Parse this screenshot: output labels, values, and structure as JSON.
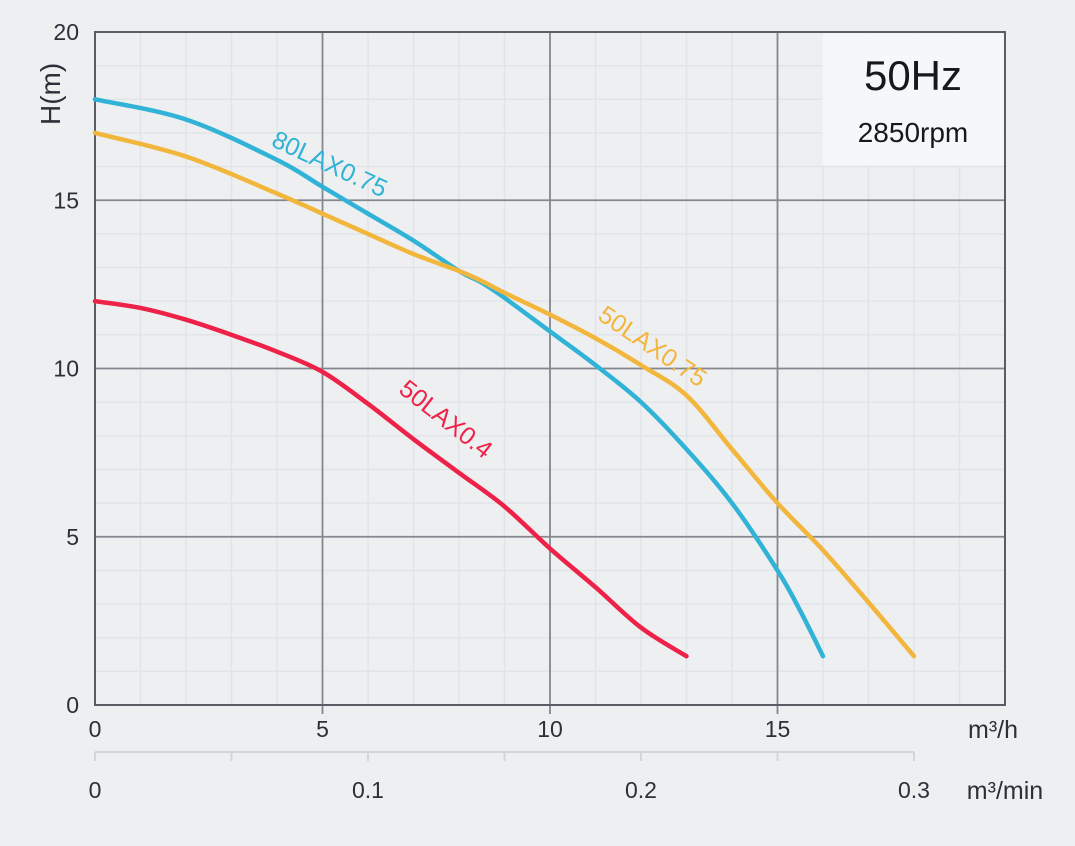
{
  "header": {
    "frequency": "50Hz",
    "rpm": "2850rpm"
  },
  "chart_data": {
    "type": "line",
    "title": "",
    "ylabel": "H(m)",
    "y_axis": {
      "label": "H(m)",
      "range": [
        0,
        20
      ],
      "ticks": [
        0,
        5,
        10,
        15,
        20
      ],
      "minor_step": 1,
      "grid": true
    },
    "x_axis_primary": {
      "unit": "m³/h",
      "range": [
        0,
        20
      ],
      "ticks": [
        0,
        5,
        10,
        15
      ],
      "minor_step": 1,
      "grid": true
    },
    "x_axis_secondary": {
      "unit": "m³/min",
      "range": [
        0,
        0.3
      ],
      "ticks": [
        0,
        0.1,
        0.2,
        0.3
      ],
      "tick_step": 0.05,
      "conversion_to_primary": 60
    },
    "legend_position": "on-curve",
    "series": [
      {
        "name": "80LAX0.75",
        "color": "#30b3d6",
        "points": [
          [
            0,
            18
          ],
          [
            2,
            17.4
          ],
          [
            4,
            16.2
          ],
          [
            5,
            15.4
          ],
          [
            6,
            14.6
          ],
          [
            7,
            13.8
          ],
          [
            8,
            12.9
          ],
          [
            8.5,
            12.55
          ],
          [
            9,
            12.1
          ],
          [
            10,
            11.1
          ],
          [
            11,
            10.1
          ],
          [
            12,
            9.0
          ],
          [
            13,
            7.6
          ],
          [
            14,
            6.0
          ],
          [
            15,
            4.0
          ],
          [
            15.5,
            2.8
          ],
          [
            16,
            1.45
          ]
        ],
        "label_at": [
          5.08,
          15.85
        ],
        "label_rotation": 25
      },
      {
        "name": "50LAX0.75",
        "color": "#f3b63c",
        "points": [
          [
            0,
            17
          ],
          [
            2,
            16.3
          ],
          [
            4,
            15.2
          ],
          [
            5,
            14.6
          ],
          [
            6,
            14.0
          ],
          [
            7,
            13.4
          ],
          [
            8,
            12.9
          ],
          [
            8.5,
            12.6
          ],
          [
            9,
            12.25
          ],
          [
            10,
            11.6
          ],
          [
            11,
            10.9
          ],
          [
            12,
            10.1
          ],
          [
            13,
            9.2
          ],
          [
            14,
            7.6
          ],
          [
            15,
            6.0
          ],
          [
            16,
            4.6
          ],
          [
            17,
            3.05
          ],
          [
            18,
            1.45
          ]
        ],
        "label_at": [
          12.15,
          10.45
        ],
        "label_rotation": 34
      },
      {
        "name": "50LAX0.4",
        "color": "#ee2248",
        "points": [
          [
            0,
            12
          ],
          [
            1,
            11.8
          ],
          [
            2,
            11.45
          ],
          [
            3,
            11.0
          ],
          [
            4,
            10.5
          ],
          [
            5,
            9.9
          ],
          [
            6,
            8.95
          ],
          [
            7,
            7.9
          ],
          [
            8,
            6.9
          ],
          [
            9,
            5.9
          ],
          [
            10,
            4.65
          ],
          [
            11,
            3.5
          ],
          [
            12,
            2.3
          ],
          [
            13,
            1.45
          ]
        ],
        "label_at": [
          7.6,
          8.3
        ],
        "label_rotation": 38
      }
    ]
  },
  "colors": {
    "background": "#edeff1",
    "plot_background": "#edeff1",
    "minor_grid": "#e0e4e8",
    "major_grid": "#83888f",
    "plot_border": "#595e66",
    "secondary_axis": "#d2d5d9",
    "info_box": "#f5f7f8",
    "text": "#2b3039"
  }
}
